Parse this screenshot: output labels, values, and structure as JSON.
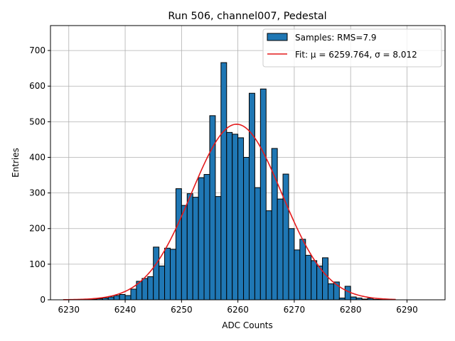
{
  "chart_data": {
    "type": "bar",
    "title": "Run 506, channel007, Pedestal",
    "xlabel": "ADC Counts",
    "ylabel": "Entries",
    "xlim": [
      6226.75,
      6296.75
    ],
    "ylim": [
      0,
      770
    ],
    "xticks": [
      6230,
      6240,
      6250,
      6260,
      6270,
      6280,
      6290
    ],
    "yticks": [
      0,
      100,
      200,
      300,
      400,
      500,
      600,
      700
    ],
    "grid": true,
    "legend_position": "top-right",
    "bin_width": 1,
    "bins": {
      "x": [
        6229,
        6230,
        6231,
        6232,
        6233,
        6234,
        6235,
        6236,
        6237,
        6238,
        6239,
        6240,
        6241,
        6242,
        6243,
        6244,
        6245,
        6246,
        6247,
        6248,
        6249,
        6250,
        6251,
        6252,
        6253,
        6254,
        6255,
        6256,
        6257,
        6258,
        6259,
        6260,
        6261,
        6262,
        6263,
        6264,
        6265,
        6266,
        6267,
        6268,
        6269,
        6270,
        6271,
        6272,
        6273,
        6274,
        6275,
        6276,
        6277,
        6278,
        6279,
        6280,
        6281,
        6282,
        6283,
        6284,
        6285,
        6286,
        6287,
        6288
      ],
      "values": [
        0,
        0,
        0,
        0,
        1,
        2,
        3,
        5,
        8,
        12,
        15,
        12,
        30,
        52,
        60,
        65,
        148,
        95,
        145,
        142,
        312,
        265,
        298,
        288,
        343,
        352,
        517,
        290,
        666,
        470,
        465,
        455,
        400,
        580,
        315,
        592,
        250,
        425,
        283,
        353,
        200,
        140,
        170,
        125,
        110,
        95,
        118,
        45,
        50,
        5,
        38,
        8,
        5,
        2,
        4,
        1,
        1,
        0,
        0,
        0
      ]
    },
    "fit": {
      "mu": 6259.764,
      "sigma": 8.012,
      "amplitude": 493,
      "xrange": [
        6229,
        6288
      ]
    },
    "series": [
      {
        "name": "Samples: RMS=7.9",
        "color": "#1f77b4",
        "edge": "#000000"
      },
      {
        "name": "Fit: μ = 6259.764, σ = 8.012",
        "color": "#e41a1c"
      }
    ]
  }
}
